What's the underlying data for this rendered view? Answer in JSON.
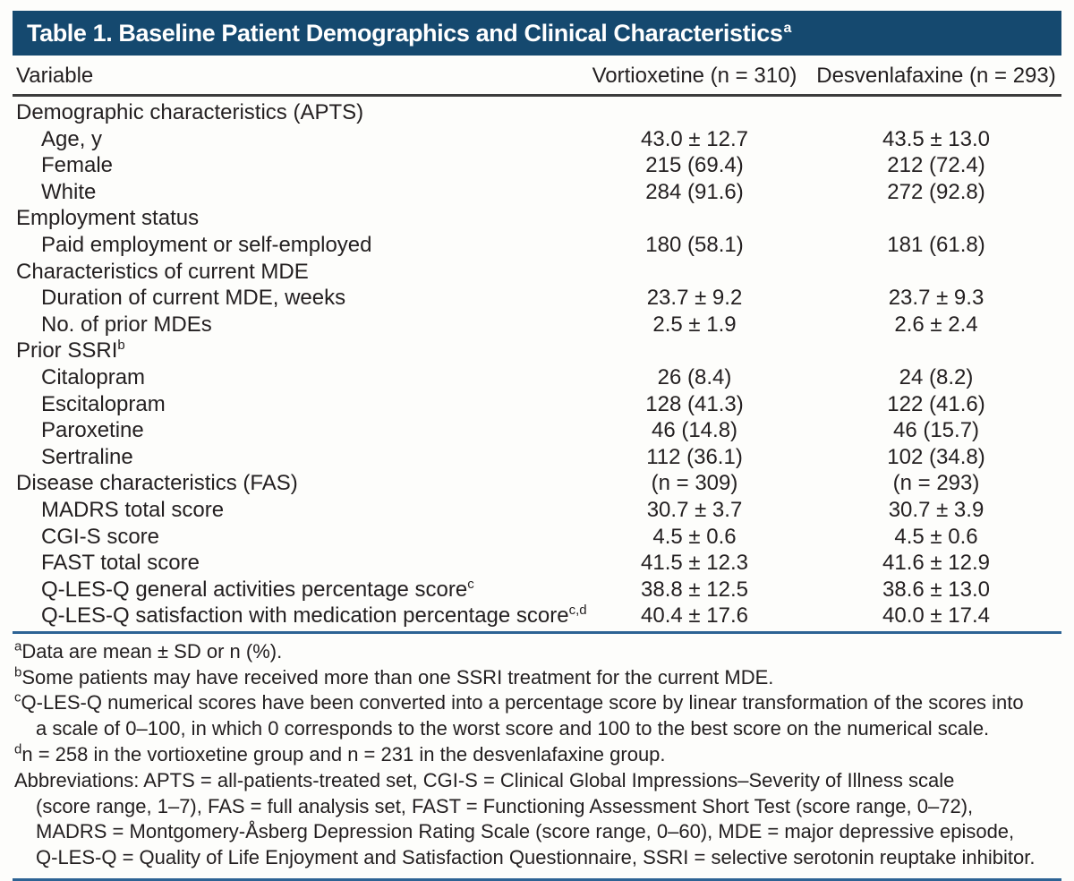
{
  "title": {
    "text": "Table 1. Baseline Patient Demographics and Clinical Characteristics",
    "superscript": "a"
  },
  "colors": {
    "header_bar": "#15496f",
    "rule_blue": "#2d6394",
    "rule_dark": "#3c3c3c",
    "text": "#231f20"
  },
  "table": {
    "columns": [
      "Variable",
      "Vortioxetine (n = 310)",
      "Desvenlafaxine (n = 293)"
    ],
    "rows": [
      {
        "type": "section",
        "label": "Demographic characteristics (APTS)",
        "sup": "",
        "v": "",
        "d": ""
      },
      {
        "type": "item",
        "label": "Age, y",
        "sup": "",
        "v": "43.0 ± 12.7",
        "d": "43.5 ± 13.0"
      },
      {
        "type": "item",
        "label": "Female",
        "sup": "",
        "v": "215 (69.4)",
        "d": "212 (72.4)"
      },
      {
        "type": "item",
        "label": "White",
        "sup": "",
        "v": "284 (91.6)",
        "d": "272 (92.8)"
      },
      {
        "type": "section",
        "label": "Employment status",
        "sup": "",
        "v": "",
        "d": ""
      },
      {
        "type": "item",
        "label": "Paid employment or self-employed",
        "sup": "",
        "v": "180 (58.1)",
        "d": "181 (61.8)"
      },
      {
        "type": "section",
        "label": "Characteristics of current MDE",
        "sup": "",
        "v": "",
        "d": ""
      },
      {
        "type": "item",
        "label": "Duration of current MDE, weeks",
        "sup": "",
        "v": "23.7 ± 9.2",
        "d": "23.7 ± 9.3"
      },
      {
        "type": "item",
        "label": "No. of prior MDEs",
        "sup": "",
        "v": "2.5 ± 1.9",
        "d": "2.6 ± 2.4"
      },
      {
        "type": "section",
        "label": "Prior SSRI",
        "sup": "b",
        "v": "",
        "d": ""
      },
      {
        "type": "item",
        "label": "Citalopram",
        "sup": "",
        "v": "26 (8.4)",
        "d": "24 (8.2)"
      },
      {
        "type": "item",
        "label": "Escitalopram",
        "sup": "",
        "v": "128 (41.3)",
        "d": "122 (41.6)"
      },
      {
        "type": "item",
        "label": "Paroxetine",
        "sup": "",
        "v": "46 (14.8)",
        "d": "46 (15.7)"
      },
      {
        "type": "item",
        "label": "Sertraline",
        "sup": "",
        "v": "112 (36.1)",
        "d": "102 (34.8)"
      },
      {
        "type": "section",
        "label": "Disease characteristics (FAS)",
        "sup": "",
        "v": "(n = 309)",
        "d": "(n = 293)"
      },
      {
        "type": "item",
        "label": "MADRS total score",
        "sup": "",
        "v": "30.7 ± 3.7",
        "d": "30.7 ± 3.9"
      },
      {
        "type": "item",
        "label": "CGI-S score",
        "sup": "",
        "v": "4.5 ± 0.6",
        "d": "4.5 ± 0.6"
      },
      {
        "type": "item",
        "label": "FAST total score",
        "sup": "",
        "v": "41.5 ± 12.3",
        "d": "41.6 ± 12.9"
      },
      {
        "type": "item",
        "label": "Q-LES-Q general activities percentage score",
        "sup": "c",
        "v": "38.8 ± 12.5",
        "d": "38.6 ± 13.0"
      },
      {
        "type": "item",
        "label": "Q-LES-Q satisfaction with medication percentage score",
        "sup": "c,d",
        "v": "40.4 ± 17.6",
        "d": "40.0 ± 17.4"
      }
    ]
  },
  "footnotes": {
    "lines": [
      {
        "sup": "a",
        "indent": false,
        "text": "Data are mean ± SD or n (%)."
      },
      {
        "sup": "b",
        "indent": false,
        "text": "Some patients may have received more than one SSRI treatment for the current MDE."
      },
      {
        "sup": "c",
        "indent": false,
        "text": "Q-LES-Q numerical scores have been converted into a percentage score by linear transformation of the scores into"
      },
      {
        "sup": "",
        "indent": true,
        "text": "a scale of 0–100, in which 0 corresponds to the worst score and 100 to the best score on the numerical scale."
      },
      {
        "sup": "d",
        "indent": false,
        "text": "n = 258 in the vortioxetine group and n = 231 in the desvenlafaxine group."
      },
      {
        "sup": "",
        "indent": false,
        "text": "Abbreviations: APTS = all-patients-treated set, CGI-S = Clinical Global Impressions–Severity of Illness scale"
      },
      {
        "sup": "",
        "indent": true,
        "text": "(score range, 1–7), FAS = full analysis set, FAST = Functioning Assessment Short Test (score range, 0–72),"
      },
      {
        "sup": "",
        "indent": true,
        "text": "MADRS = Montgomery-Åsberg Depression Rating Scale (score range, 0–60), MDE = major depressive episode,"
      },
      {
        "sup": "",
        "indent": true,
        "text": "Q-LES-Q = Quality of Life Enjoyment and Satisfaction Questionnaire, SSRI = selective serotonin reuptake inhibitor."
      }
    ]
  }
}
